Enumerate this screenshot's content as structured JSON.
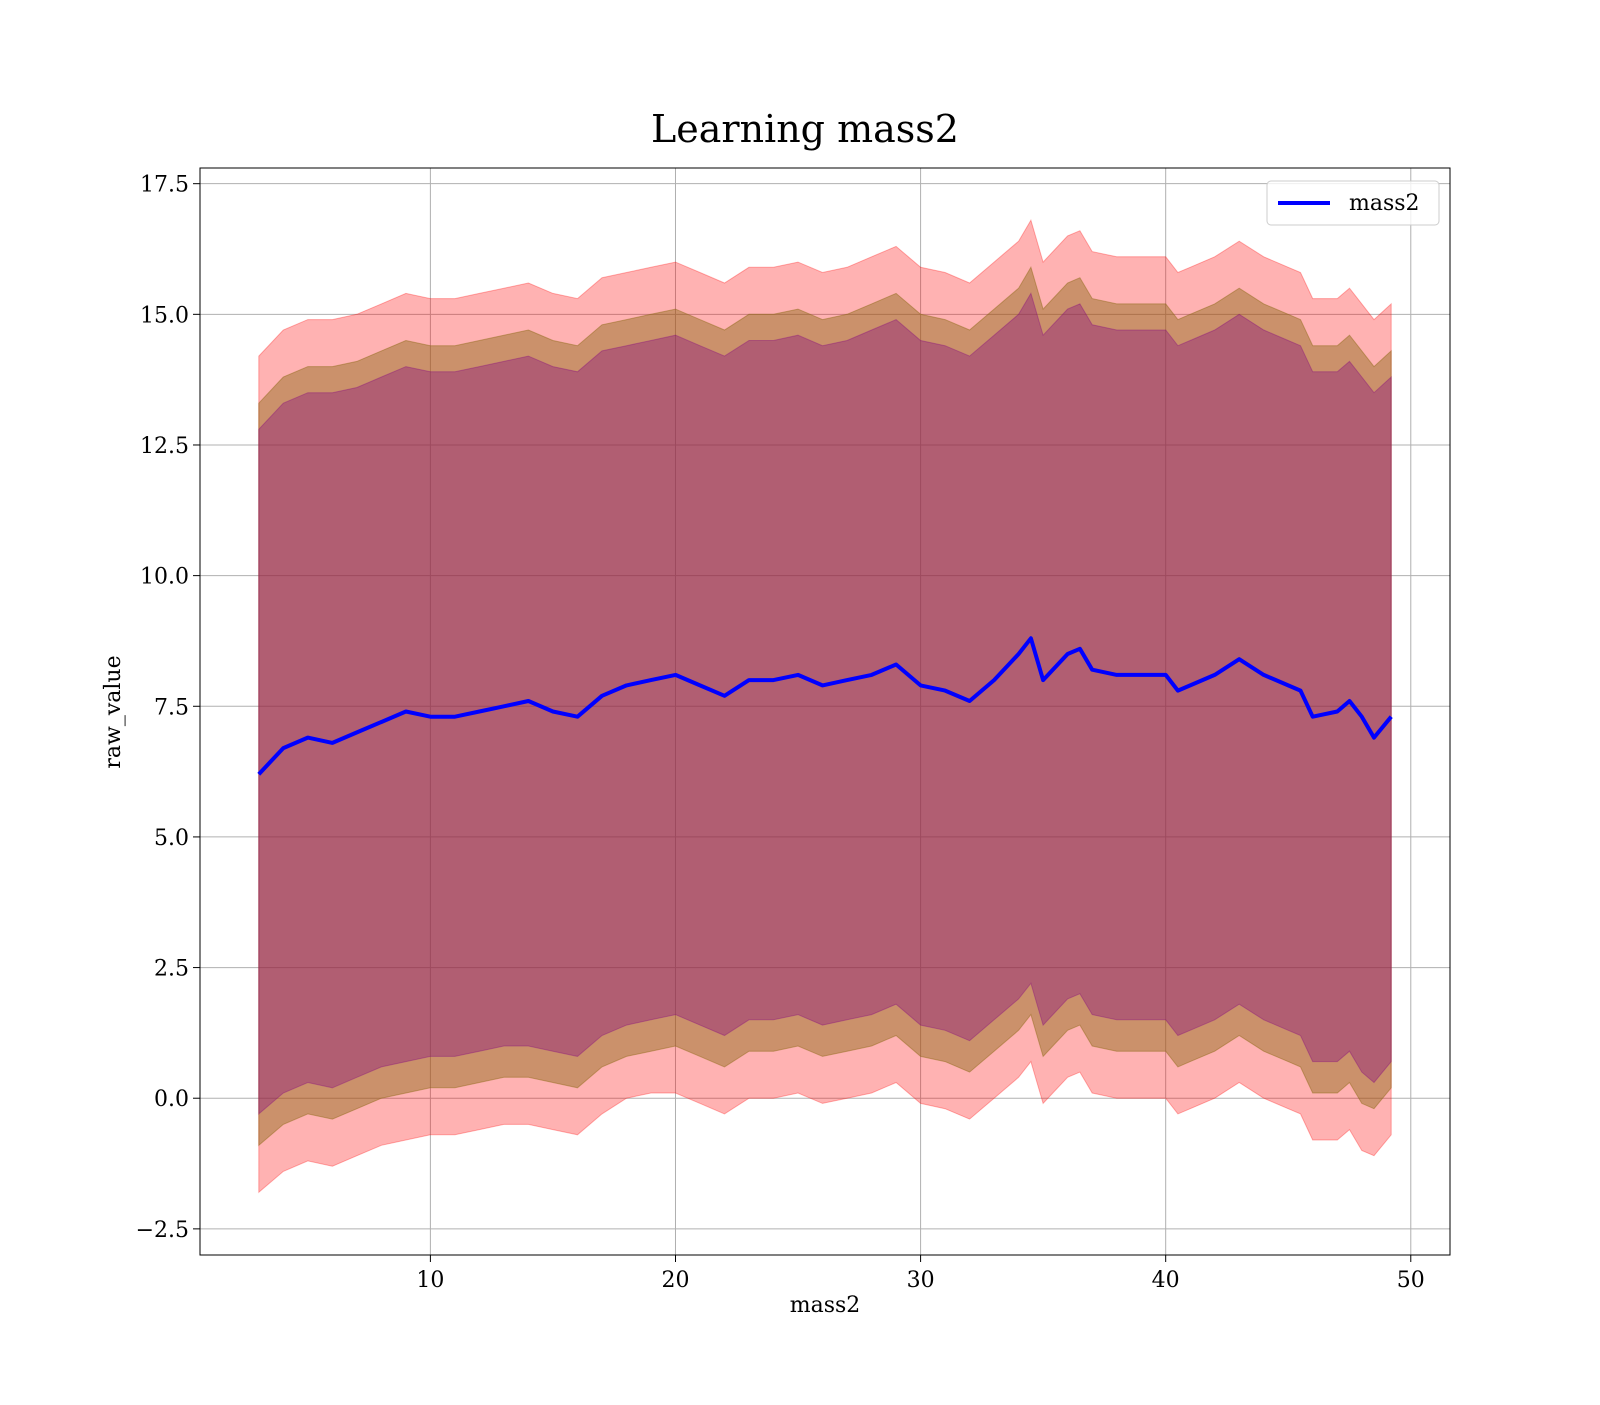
{
  "chart_data": {
    "type": "line",
    "title": "Learning mass2",
    "xlabel": "mass2",
    "ylabel": "raw_value",
    "xlim": [
      0.6,
      51.6
    ],
    "ylim": [
      -3.0,
      17.8
    ],
    "x_ticks": [
      10,
      20,
      30,
      40,
      50
    ],
    "y_ticks": [
      -2.5,
      0.0,
      2.5,
      5.0,
      7.5,
      10.0,
      12.5,
      15.0,
      17.5
    ],
    "x_tick_labels": [
      "10",
      "20",
      "30",
      "40",
      "50"
    ],
    "y_tick_labels": [
      "−2.5",
      "0.0",
      "2.5",
      "5.0",
      "7.5",
      "10.0",
      "12.5",
      "15.0",
      "17.5"
    ],
    "grid": true,
    "legend": {
      "position": "top-right",
      "entries": [
        "mass2"
      ]
    },
    "x": [
      3.0,
      4.0,
      5.0,
      6.0,
      7.0,
      8.0,
      9.0,
      10.0,
      11.0,
      12.0,
      13.0,
      14.0,
      15.0,
      16.0,
      17.0,
      18.0,
      19.0,
      20.0,
      21.0,
      22.0,
      23.0,
      24.0,
      25.0,
      26.0,
      27.0,
      28.0,
      29.0,
      30.0,
      31.0,
      32.0,
      33.0,
      34.0,
      34.5,
      35.0,
      36.0,
      36.5,
      37.0,
      38.0,
      39.0,
      40.0,
      40.5,
      41.0,
      42.0,
      43.0,
      44.0,
      45.0,
      45.5,
      46.0,
      47.0,
      47.5,
      48.0,
      48.5,
      49.2
    ],
    "series": [
      {
        "name": "mass2",
        "style": "line",
        "color": "#0000ff",
        "values": [
          6.2,
          6.7,
          6.9,
          6.8,
          7.0,
          7.2,
          7.4,
          7.3,
          7.3,
          7.4,
          7.5,
          7.6,
          7.4,
          7.3,
          7.7,
          7.9,
          8.0,
          8.1,
          7.9,
          7.7,
          8.0,
          8.0,
          8.1,
          7.9,
          8.0,
          8.1,
          8.3,
          7.9,
          7.8,
          7.6,
          8.0,
          8.5,
          8.8,
          8.0,
          8.5,
          8.6,
          8.2,
          8.1,
          8.1,
          8.1,
          7.8,
          7.9,
          8.1,
          8.4,
          8.1,
          7.9,
          7.8,
          7.3,
          7.4,
          7.6,
          7.3,
          6.9,
          7.3
        ]
      },
      {
        "name": "",
        "style": "band",
        "color": "#ff0000",
        "opacity": 0.3,
        "lower": [
          -1.8,
          -1.4,
          -1.2,
          -1.3,
          -1.1,
          -0.9,
          -0.8,
          -0.7,
          -0.7,
          -0.6,
          -0.5,
          -0.5,
          -0.6,
          -0.7,
          -0.3,
          0.0,
          0.1,
          0.1,
          -0.1,
          -0.3,
          0.0,
          0.0,
          0.1,
          -0.1,
          0.0,
          0.1,
          0.3,
          -0.1,
          -0.2,
          -0.4,
          0.0,
          0.4,
          0.7,
          -0.1,
          0.4,
          0.5,
          0.1,
          0.0,
          0.0,
          0.0,
          -0.3,
          -0.2,
          0.0,
          0.3,
          0.0,
          -0.2,
          -0.3,
          -0.8,
          -0.8,
          -0.6,
          -1.0,
          -1.1,
          -0.7
        ],
        "upper": [
          14.2,
          14.7,
          14.9,
          14.9,
          15.0,
          15.2,
          15.4,
          15.3,
          15.3,
          15.4,
          15.5,
          15.6,
          15.4,
          15.3,
          15.7,
          15.8,
          15.9,
          16.0,
          15.8,
          15.6,
          15.9,
          15.9,
          16.0,
          15.8,
          15.9,
          16.1,
          16.3,
          15.9,
          15.8,
          15.6,
          16.0,
          16.4,
          16.8,
          16.0,
          16.5,
          16.6,
          16.2,
          16.1,
          16.1,
          16.1,
          15.8,
          15.9,
          16.1,
          16.4,
          16.1,
          15.9,
          15.8,
          15.3,
          15.3,
          15.5,
          15.2,
          14.9,
          15.2
        ]
      },
      {
        "name": "",
        "style": "band",
        "color": "#8b6914",
        "opacity": 0.45,
        "lower": [
          -0.9,
          -0.5,
          -0.3,
          -0.4,
          -0.2,
          0.0,
          0.1,
          0.2,
          0.2,
          0.3,
          0.4,
          0.4,
          0.3,
          0.2,
          0.6,
          0.8,
          0.9,
          1.0,
          0.8,
          0.6,
          0.9,
          0.9,
          1.0,
          0.8,
          0.9,
          1.0,
          1.2,
          0.8,
          0.7,
          0.5,
          0.9,
          1.3,
          1.6,
          0.8,
          1.3,
          1.4,
          1.0,
          0.9,
          0.9,
          0.9,
          0.6,
          0.7,
          0.9,
          1.2,
          0.9,
          0.7,
          0.6,
          0.1,
          0.1,
          0.3,
          -0.1,
          -0.2,
          0.2
        ],
        "upper": [
          13.3,
          13.8,
          14.0,
          14.0,
          14.1,
          14.3,
          14.5,
          14.4,
          14.4,
          14.5,
          14.6,
          14.7,
          14.5,
          14.4,
          14.8,
          14.9,
          15.0,
          15.1,
          14.9,
          14.7,
          15.0,
          15.0,
          15.1,
          14.9,
          15.0,
          15.2,
          15.4,
          15.0,
          14.9,
          14.7,
          15.1,
          15.5,
          15.9,
          15.1,
          15.6,
          15.7,
          15.3,
          15.2,
          15.2,
          15.2,
          14.9,
          15.0,
          15.2,
          15.5,
          15.2,
          15.0,
          14.9,
          14.4,
          14.4,
          14.6,
          14.3,
          14.0,
          14.3
        ]
      },
      {
        "name": "",
        "style": "band",
        "color": "#800080",
        "opacity": 0.35,
        "lower": [
          -0.3,
          0.1,
          0.3,
          0.2,
          0.4,
          0.6,
          0.7,
          0.8,
          0.8,
          0.9,
          1.0,
          1.0,
          0.9,
          0.8,
          1.2,
          1.4,
          1.5,
          1.6,
          1.4,
          1.2,
          1.5,
          1.5,
          1.6,
          1.4,
          1.5,
          1.6,
          1.8,
          1.4,
          1.3,
          1.1,
          1.5,
          1.9,
          2.2,
          1.4,
          1.9,
          2.0,
          1.6,
          1.5,
          1.5,
          1.5,
          1.2,
          1.3,
          1.5,
          1.8,
          1.5,
          1.3,
          1.2,
          0.7,
          0.7,
          0.9,
          0.5,
          0.3,
          0.7
        ],
        "upper": [
          12.8,
          13.3,
          13.5,
          13.5,
          13.6,
          13.8,
          14.0,
          13.9,
          13.9,
          14.0,
          14.1,
          14.2,
          14.0,
          13.9,
          14.3,
          14.4,
          14.5,
          14.6,
          14.4,
          14.2,
          14.5,
          14.5,
          14.6,
          14.4,
          14.5,
          14.7,
          14.9,
          14.5,
          14.4,
          14.2,
          14.6,
          15.0,
          15.4,
          14.6,
          15.1,
          15.2,
          14.8,
          14.7,
          14.7,
          14.7,
          14.4,
          14.5,
          14.7,
          15.0,
          14.7,
          14.5,
          14.4,
          13.9,
          13.9,
          14.1,
          13.8,
          13.5,
          13.8
        ]
      }
    ]
  }
}
